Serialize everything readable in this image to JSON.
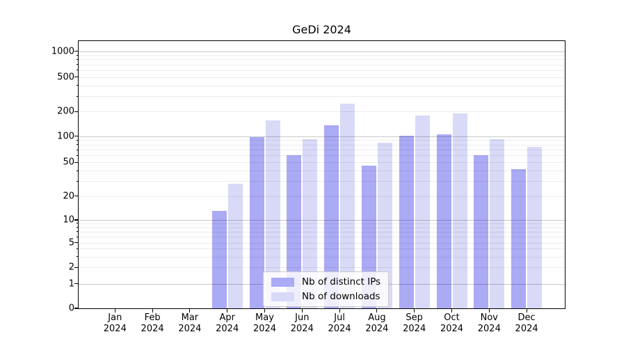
{
  "title": "GeDi 2024",
  "legend": {
    "position": "lower center",
    "items": [
      {
        "label": "Nb of distinct IPs",
        "color": "#aaaaf5"
      },
      {
        "label": "Nb of downloads",
        "color": "#d9d9f8"
      }
    ]
  },
  "chart_data": {
    "type": "bar",
    "title": "GeDi 2024",
    "xlabel": "",
    "ylabel": "",
    "yscale": "symlog",
    "ylim": [
      0,
      1300
    ],
    "grid": true,
    "y_tick_labels": [
      "0",
      "1",
      "2",
      "5",
      "10",
      "20",
      "50",
      "100",
      "200",
      "500",
      "1000"
    ],
    "y_ticks": [
      0,
      1,
      2,
      5,
      10,
      20,
      50,
      100,
      200,
      500,
      1000
    ],
    "categories": [
      {
        "month": "Jan",
        "year": "2024"
      },
      {
        "month": "Feb",
        "year": "2024"
      },
      {
        "month": "Mar",
        "year": "2024"
      },
      {
        "month": "Apr",
        "year": "2024"
      },
      {
        "month": "May",
        "year": "2024"
      },
      {
        "month": "Jun",
        "year": "2024"
      },
      {
        "month": "Jul",
        "year": "2024"
      },
      {
        "month": "Aug",
        "year": "2024"
      },
      {
        "month": "Sep",
        "year": "2024"
      },
      {
        "month": "Oct",
        "year": "2024"
      },
      {
        "month": "Nov",
        "year": "2024"
      },
      {
        "month": "Dec",
        "year": "2024"
      }
    ],
    "series": [
      {
        "name": "Nb of distinct IPs",
        "color": "#aaaaf5",
        "values": [
          0,
          0,
          0,
          13,
          97,
          60,
          135,
          46,
          102,
          105,
          61,
          42
        ]
      },
      {
        "name": "Nb of downloads",
        "color": "#d9d9f8",
        "values": [
          0,
          0,
          0,
          28,
          155,
          92,
          245,
          84,
          180,
          190,
          92,
          76
        ]
      }
    ]
  }
}
